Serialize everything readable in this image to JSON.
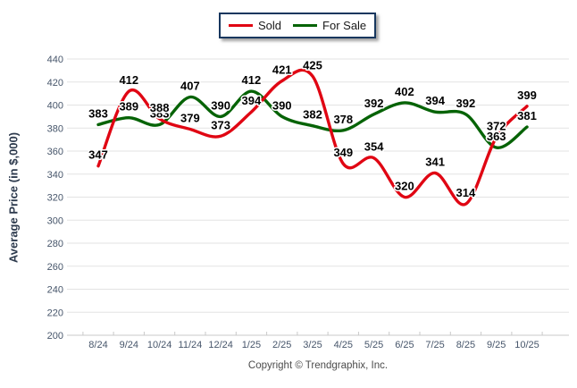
{
  "chart_data": {
    "type": "line",
    "categories": [
      "8/24",
      "9/24",
      "10/24",
      "11/24",
      "12/24",
      "1/25",
      "2/25",
      "3/25",
      "4/25",
      "5/25",
      "6/25",
      "7/25",
      "8/25",
      "9/25",
      "10/25"
    ],
    "series": [
      {
        "name": "Sold",
        "color": "#e00613",
        "values": [
          347,
          412,
          388,
          379,
          373,
          394,
          421,
          425,
          349,
          354,
          320,
          341,
          314,
          372,
          399
        ]
      },
      {
        "name": "For Sale",
        "color": "#066306",
        "values": [
          383,
          389,
          383,
          407,
          390,
          412,
          390,
          382,
          378,
          392,
          402,
          394,
          392,
          363,
          381
        ]
      }
    ],
    "title": "",
    "xlabel": "",
    "ylabel": "Average Price (in $,000)",
    "ylim": [
      200,
      440
    ],
    "ytick_step": 20,
    "grid": true,
    "legend_position": "top-center",
    "colors": {
      "grid": "#e3e3e3",
      "axis": "#c9c9c9",
      "tick_text": "#47566b",
      "axis_title_text": "#2d3a4d",
      "legend_border": "#17375e",
      "point_label_text": "#000000"
    }
  },
  "footer": {
    "copyright": "Copyright © Trendgraphix, Inc."
  }
}
